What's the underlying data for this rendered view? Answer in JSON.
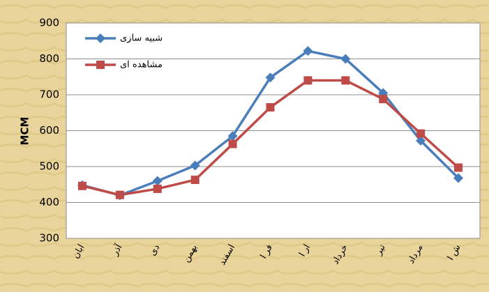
{
  "chart_data": {
    "type": "line",
    "categories": [
      "ابان",
      "آذر",
      "دی",
      "بهمن",
      "اسفند",
      "فر ا",
      "ار ا",
      "خرداد",
      "تیر",
      "مرداد",
      "ش ا"
    ],
    "series": [
      {
        "name": "شبیه سازی",
        "color": "#4a7ebb",
        "marker": "diamond",
        "values": [
          448,
          420,
          460,
          503,
          585,
          748,
          822,
          800,
          705,
          572,
          468
        ]
      },
      {
        "name": "مشاهده ای",
        "color": "#be4b48",
        "marker": "square",
        "values": [
          446,
          421,
          438,
          463,
          563,
          665,
          740,
          740,
          688,
          592,
          497
        ]
      }
    ],
    "ylabel": "MCM",
    "ylim": [
      300,
      900
    ],
    "yticks": [
      300,
      400,
      500,
      600,
      700,
      800,
      900
    ],
    "grid": true,
    "legend": "upper left"
  }
}
